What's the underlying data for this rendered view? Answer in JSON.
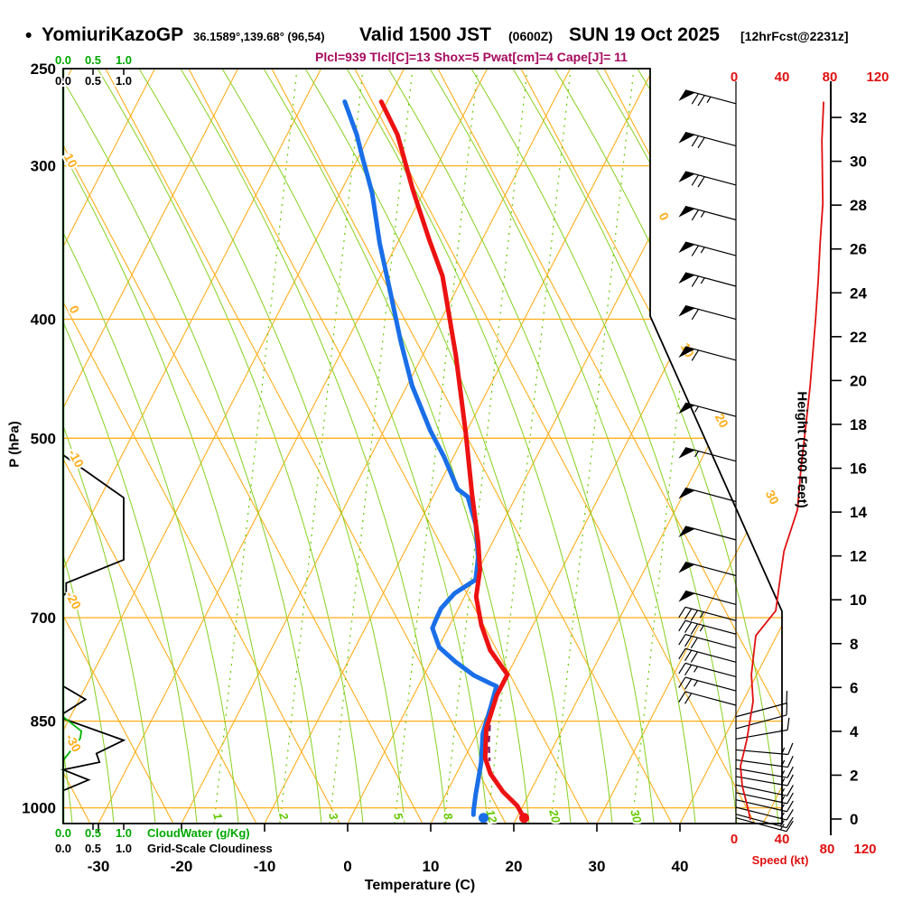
{
  "title": {
    "bullet": "•",
    "station": "YomiuriKazoGP",
    "coords": "36.1589°,139.68° (96,54)",
    "valid": "Valid 1500 JST",
    "utc": "(0600Z)",
    "date": "SUN 19 Oct 2025",
    "fcst": "[12hrFcst@2231z]"
  },
  "stats_line": "Plcl=939 Tlcl[C]=13 Shox=5 Pwat[cm]=4 Cape[J]= 11",
  "axes": {
    "pressure": {
      "title": "P (hPa)",
      "ticks": [
        250,
        300,
        400,
        500,
        700,
        850,
        1000
      ]
    },
    "temperature": {
      "title": "Temperature (C)",
      "ticks": [
        -30,
        -20,
        -10,
        0,
        10,
        20,
        30,
        40
      ]
    },
    "height": {
      "title": "Height (1000 Feet)",
      "ticks": [
        0,
        2,
        4,
        6,
        8,
        10,
        12,
        14,
        16,
        18,
        20,
        22,
        24,
        26,
        28,
        30,
        32
      ]
    },
    "speed": {
      "title": "Speed (kt)",
      "ticks": [
        0,
        40,
        80,
        120
      ]
    },
    "cloudwater": {
      "title": "CloudWater (g/Kg)",
      "scale": [
        "0.0",
        "0.5",
        "1.0"
      ]
    },
    "cloudiness": {
      "title": "Grid-Scale Cloudiness",
      "scale": [
        "0.0",
        "0.5",
        "1.0"
      ]
    }
  },
  "isotherm_labels": {
    "left": [
      "10",
      "0",
      "-10",
      "-20",
      "-30"
    ],
    "right": [
      "0",
      "10",
      "20",
      "30"
    ]
  },
  "mixing_ratio_labels": [
    "1",
    "2",
    "3",
    "5",
    "8",
    "12",
    "20",
    "30"
  ],
  "colors": {
    "grid_orange": "#ffae1a",
    "grid_green": "#86d01e",
    "axis_green": "#00b400",
    "label_green": "#00a800",
    "mixing_green": "#64c800",
    "temp_red": "#ec1212",
    "dew_blue": "#1a6fe8",
    "speed_red": "#e01010",
    "stats_purple": "#a60a5e",
    "parcel_maroon": "#8a1f5c",
    "black": "#000000"
  },
  "chart_data": {
    "type": "skewt_log_p_sounding",
    "pressure_range_hpa": [
      250,
      1050
    ],
    "temperature_range_c": [
      -30,
      45
    ],
    "height_range_kft": [
      0,
      33
    ],
    "wind_speed_range_kt": [
      0,
      120
    ],
    "temperature_profile_p_t": [
      [
        266,
        -40.7
      ],
      [
        283,
        -36.7
      ],
      [
        314,
        -31.4
      ],
      [
        345,
        -26.3
      ],
      [
        369,
        -22.5
      ],
      [
        428,
        -16.0
      ],
      [
        495,
        -10.0
      ],
      [
        556,
        -5.4
      ],
      [
        608,
        -1.7
      ],
      [
        640,
        0.2
      ],
      [
        673,
        1.4
      ],
      [
        710,
        3.8
      ],
      [
        744,
        6.4
      ],
      [
        779,
        10.0
      ],
      [
        810,
        10.0
      ],
      [
        842,
        10.5
      ],
      [
        862,
        10.8
      ],
      [
        911,
        12.5
      ],
      [
        938,
        14.1
      ],
      [
        970,
        16.7
      ],
      [
        996,
        19.3
      ],
      [
        1018,
        20.8
      ]
    ],
    "dewpoint_profile_p_t": [
      [
        266,
        -45.1
      ],
      [
        283,
        -41.6
      ],
      [
        296,
        -39.4
      ],
      [
        306,
        -37.7
      ],
      [
        316,
        -36.1
      ],
      [
        347,
        -32.1
      ],
      [
        377,
        -28.2
      ],
      [
        417,
        -23.5
      ],
      [
        453,
        -19.4
      ],
      [
        493,
        -14.4
      ],
      [
        518,
        -11.1
      ],
      [
        550,
        -7.5
      ],
      [
        558,
        -5.8
      ],
      [
        588,
        -3.1
      ],
      [
        625,
        -0.8
      ],
      [
        652,
        0.3
      ],
      [
        669,
        -1.4
      ],
      [
        688,
        -2.1
      ],
      [
        705,
        -2.0
      ],
      [
        714,
        -1.9
      ],
      [
        740,
        0.1
      ],
      [
        760,
        2.9
      ],
      [
        780,
        6.0
      ],
      [
        792,
        8.5
      ],
      [
        796,
        9.4
      ],
      [
        828,
        10.0
      ],
      [
        852,
        10.4
      ],
      [
        870,
        10.7
      ],
      [
        919,
        12.3
      ],
      [
        975,
        13.6
      ],
      [
        1003,
        14.3
      ],
      [
        1013,
        14.6
      ]
    ],
    "parcel_segment_p_t": [
      [
        856,
        11.0
      ],
      [
        886,
        12.0
      ],
      [
        916,
        13.2
      ]
    ],
    "surface_markers": {
      "pressure_hpa": 1019,
      "temperature_c": 20.9,
      "dewpoint_c": 16.0
    },
    "wind_speed_profile_p_kt": [
      [
        266,
        74
      ],
      [
        286,
        72.5
      ],
      [
        322,
        73.3
      ],
      [
        347,
        71
      ],
      [
        371,
        69.5
      ],
      [
        400,
        67.2
      ],
      [
        453,
        62.6
      ],
      [
        490,
        58.8
      ],
      [
        527,
        55
      ],
      [
        572,
        51.9
      ],
      [
        618,
        40.5
      ],
      [
        641,
        38.2
      ],
      [
        691,
        33.6
      ],
      [
        724,
        16.8
      ],
      [
        779,
        13
      ],
      [
        819,
        14.5
      ],
      [
        880,
        9.2
      ],
      [
        925,
        3.8
      ],
      [
        960,
        5.3
      ],
      [
        1006,
        10.7
      ],
      [
        1023,
        12.2
      ]
    ],
    "wind_barbs_p_dir_spd": [
      [
        267,
        285,
        75
      ],
      [
        289,
        285,
        70
      ],
      [
        311,
        285,
        70
      ],
      [
        332,
        285,
        65
      ],
      [
        355,
        285,
        65
      ],
      [
        376,
        285,
        65
      ],
      [
        400,
        285,
        60
      ],
      [
        432,
        285,
        60
      ],
      [
        480,
        285,
        55
      ],
      [
        522,
        285,
        55
      ],
      [
        563,
        285,
        50
      ],
      [
        605,
        285,
        50
      ],
      [
        647,
        285,
        50
      ],
      [
        683,
        285,
        50
      ],
      [
        704,
        285,
        35
      ],
      [
        722,
        285,
        35
      ],
      [
        741,
        285,
        30
      ],
      [
        761,
        285,
        30
      ],
      [
        782,
        285,
        25
      ],
      [
        803,
        285,
        25
      ],
      [
        825,
        285,
        20
      ],
      [
        843,
        75,
        10
      ],
      [
        862,
        75,
        10
      ],
      [
        879,
        80,
        15
      ],
      [
        897,
        95,
        15
      ],
      [
        914,
        98,
        15
      ],
      [
        929,
        100,
        15
      ],
      [
        943,
        100,
        15
      ],
      [
        958,
        102,
        15
      ],
      [
        972,
        102,
        15
      ],
      [
        985,
        103,
        15
      ],
      [
        999,
        104,
        15
      ],
      [
        1012,
        105,
        15
      ],
      [
        1019,
        105,
        15
      ]
    ],
    "cloudiness_profile_p_frac": [
      [
        516,
        0
      ],
      [
        559,
        1.0
      ],
      [
        628,
        1.0
      ],
      [
        656,
        0.05
      ],
      [
        668,
        0.05
      ],
      [
        672,
        0
      ],
      [
        796,
        0
      ],
      [
        816,
        0.37
      ],
      [
        838,
        0
      ],
      [
        846,
        0
      ],
      [
        881,
        1.0
      ],
      [
        903,
        0.55
      ],
      [
        918,
        0.6
      ],
      [
        931,
        0
      ],
      [
        949,
        0.42
      ],
      [
        968,
        0
      ]
    ],
    "cloudwater_profile_p_gkg": [
      [
        843,
        0
      ],
      [
        866,
        0.3
      ],
      [
        878,
        0.28
      ],
      [
        915,
        0
      ]
    ]
  }
}
